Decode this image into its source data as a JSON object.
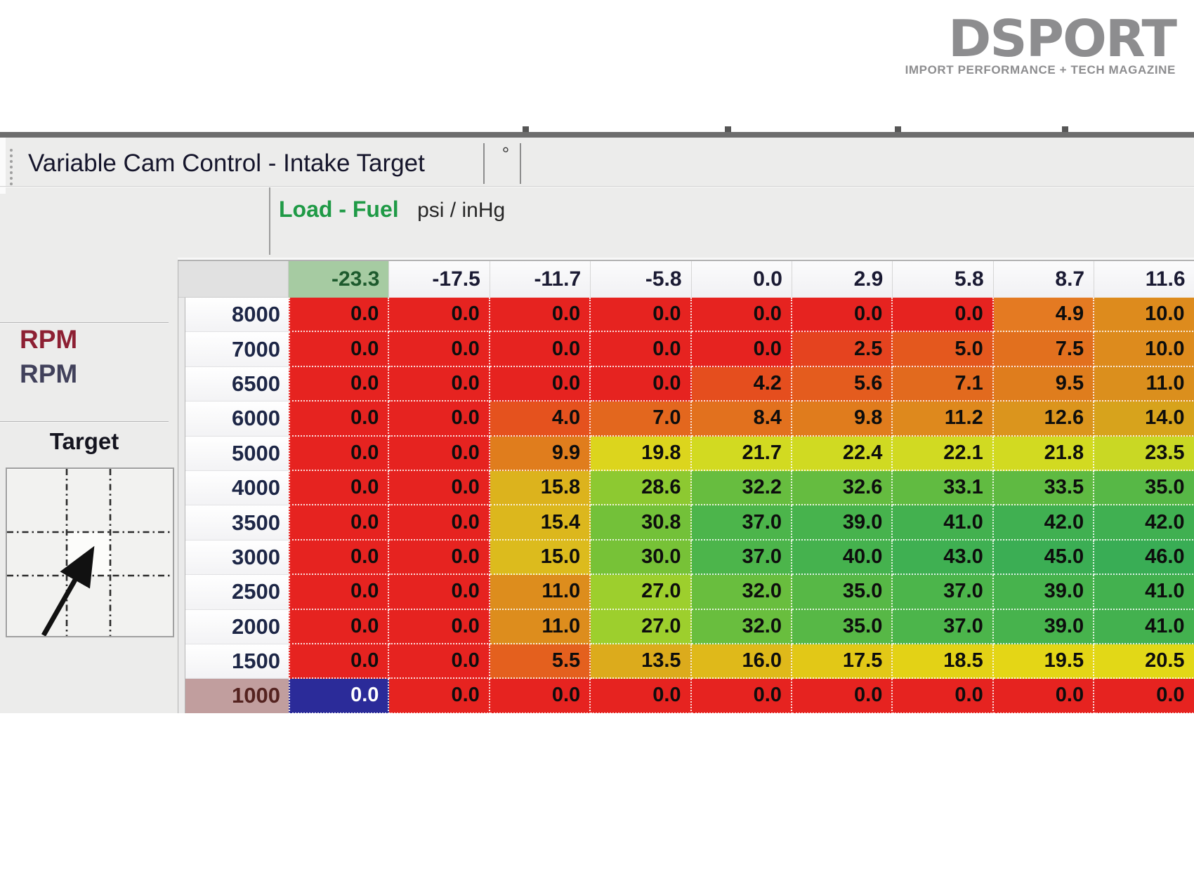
{
  "logo": {
    "wordmark": "DSPORT",
    "tagline": "IMPORT PERFORMANCE + TECH MAGAZINE",
    "color": "#8d8d8f"
  },
  "window": {
    "title": "Variable Cam Control - Intake Target",
    "units_tab": "°"
  },
  "axis": {
    "load_fuel": "Load - Fuel",
    "units": "psi / inHg"
  },
  "sidebar": {
    "rpm_label_primary": "RPM",
    "rpm_label_secondary": "RPM",
    "target_label": "Target"
  },
  "table": {
    "col_headers": [
      "-23.3",
      "-17.5",
      "-11.7",
      "-5.8",
      "0.0",
      "2.9",
      "5.8",
      "8.7",
      "11.6"
    ],
    "selected_col": 0,
    "selected_row": 11,
    "selected_cell": {
      "row": 11,
      "col": 0,
      "bg": "#2b2b99",
      "text_color": "#ffffff"
    },
    "header_selected_bg": "#a6cba2",
    "row_header_selected_bg": "#c19e9e",
    "rows": [
      {
        "rpm": "8000",
        "values": [
          "0.0",
          "0.0",
          "0.0",
          "0.0",
          "0.0",
          "0.0",
          "0.0",
          "4.9",
          "10.0"
        ],
        "colors": [
          "#e62320",
          "#e62320",
          "#e62320",
          "#e62320",
          "#e62320",
          "#e62320",
          "#e62320",
          "#e47a22",
          "#dd8b1d"
        ]
      },
      {
        "rpm": "7000",
        "values": [
          "0.0",
          "0.0",
          "0.0",
          "0.0",
          "0.0",
          "2.5",
          "5.0",
          "7.5",
          "10.0"
        ],
        "colors": [
          "#e62320",
          "#e62320",
          "#e62320",
          "#e62320",
          "#e62320",
          "#e5431f",
          "#e4581e",
          "#e2701e",
          "#dd8b1d"
        ]
      },
      {
        "rpm": "6500",
        "values": [
          "0.0",
          "0.0",
          "0.0",
          "0.0",
          "4.2",
          "5.6",
          "7.1",
          "9.5",
          "11.0"
        ],
        "colors": [
          "#e62320",
          "#e62320",
          "#e62320",
          "#e62320",
          "#e54e1e",
          "#e45c1e",
          "#e26a1e",
          "#df7d1d",
          "#db8f1d"
        ]
      },
      {
        "rpm": "6000",
        "values": [
          "0.0",
          "0.0",
          "4.0",
          "7.0",
          "8.4",
          "9.8",
          "11.2",
          "12.6",
          "14.0"
        ],
        "colors": [
          "#e62320",
          "#e62320",
          "#e5521e",
          "#e3671e",
          "#e2711e",
          "#e07c1d",
          "#de891d",
          "#db951d",
          "#d7a31c"
        ]
      },
      {
        "rpm": "5000",
        "values": [
          "0.0",
          "0.0",
          "9.9",
          "19.8",
          "21.7",
          "22.4",
          "22.1",
          "21.8",
          "23.5"
        ],
        "colors": [
          "#e62320",
          "#e62320",
          "#e07d1d",
          "#dcd51d",
          "#d2da21",
          "#d0da22",
          "#d1da22",
          "#d2da21",
          "#c9d824"
        ]
      },
      {
        "rpm": "4000",
        "values": [
          "0.0",
          "0.0",
          "15.8",
          "28.6",
          "32.2",
          "32.6",
          "33.1",
          "33.5",
          "35.0"
        ],
        "colors": [
          "#e62320",
          "#e62320",
          "#dcb31d",
          "#8dc931",
          "#67bd3f",
          "#65bc40",
          "#61bb41",
          "#5fba42",
          "#57b846"
        ]
      },
      {
        "rpm": "3500",
        "values": [
          "0.0",
          "0.0",
          "15.4",
          "30.8",
          "37.0",
          "39.0",
          "41.0",
          "42.0",
          "42.0"
        ],
        "colors": [
          "#e62320",
          "#e62320",
          "#dcb71d",
          "#73c139",
          "#4cb54b",
          "#47b34d",
          "#43b14f",
          "#40b051",
          "#40b051"
        ]
      },
      {
        "rpm": "3000",
        "values": [
          "0.0",
          "0.0",
          "15.0",
          "30.0",
          "37.0",
          "40.0",
          "43.0",
          "45.0",
          "46.0"
        ],
        "colors": [
          "#e62320",
          "#e62320",
          "#dcbb1d",
          "#77c237",
          "#4cb54b",
          "#45b24e",
          "#3fb052",
          "#3bae54",
          "#39ad55"
        ]
      },
      {
        "rpm": "2500",
        "values": [
          "0.0",
          "0.0",
          "11.0",
          "27.0",
          "32.0",
          "35.0",
          "37.0",
          "39.0",
          "41.0"
        ],
        "colors": [
          "#e62320",
          "#e62320",
          "#dd8d1d",
          "#9dcf2d",
          "#69be3e",
          "#57b846",
          "#4cb54b",
          "#47b34d",
          "#43b14f"
        ]
      },
      {
        "rpm": "2000",
        "values": [
          "0.0",
          "0.0",
          "11.0",
          "27.0",
          "32.0",
          "35.0",
          "37.0",
          "39.0",
          "41.0"
        ],
        "colors": [
          "#e62320",
          "#e62320",
          "#dd8d1d",
          "#9dcf2d",
          "#69be3e",
          "#57b846",
          "#4cb54b",
          "#47b34d",
          "#43b14f"
        ]
      },
      {
        "rpm": "1500",
        "values": [
          "0.0",
          "0.0",
          "5.5",
          "13.5",
          "16.0",
          "17.5",
          "18.5",
          "19.5",
          "20.5"
        ],
        "colors": [
          "#e62320",
          "#e62320",
          "#e4601e",
          "#dcab1c",
          "#dfb91a",
          "#e2c817",
          "#e3d216",
          "#e4d616",
          "#e2d817"
        ]
      },
      {
        "rpm": "1000",
        "values": [
          "0.0",
          "0.0",
          "0.0",
          "0.0",
          "0.0",
          "0.0",
          "0.0",
          "0.0",
          "0.0"
        ],
        "colors": [
          "#2b2b99",
          "#e62320",
          "#e62320",
          "#e62320",
          "#e62320",
          "#e62320",
          "#e62320",
          "#e62320",
          "#e62320"
        ]
      }
    ]
  }
}
